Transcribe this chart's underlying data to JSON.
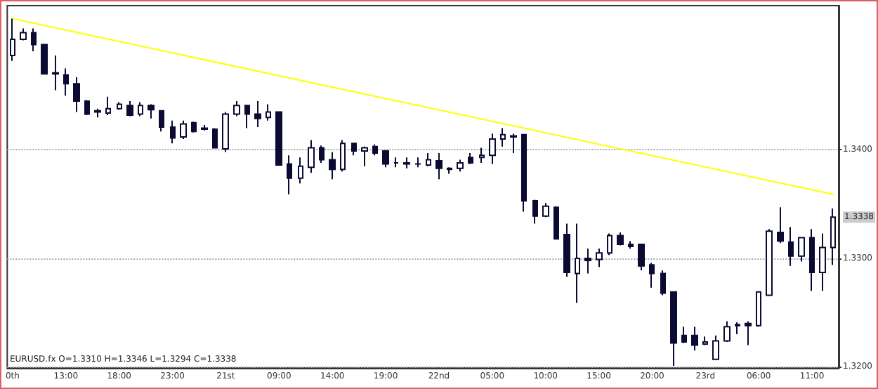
{
  "chart_data": {
    "type": "candlestick",
    "color": "#0a0a32",
    "categories": [
      "0th",
      null,
      null,
      null,
      null,
      "13:00",
      null,
      null,
      null,
      null,
      "18:00",
      null,
      null,
      null,
      null,
      "23:00",
      null,
      null,
      null,
      null,
      "21st",
      null,
      null,
      null,
      null,
      "09:00",
      null,
      null,
      null,
      null,
      "14:00",
      null,
      null,
      null,
      null,
      "19:00",
      null,
      null,
      null,
      null,
      "22nd",
      null,
      null,
      null,
      null,
      "05:00",
      null,
      null,
      null,
      null,
      "10:00",
      null,
      null,
      null,
      null,
      "15:00",
      null,
      null,
      null,
      null,
      "20:00",
      null,
      null,
      null,
      null,
      "23rd",
      null,
      null,
      null,
      null,
      "06:00",
      null,
      null,
      null,
      null,
      "11:00",
      null,
      null
    ],
    "ohlc": [
      [
        1.3487,
        1.3521,
        1.3482,
        1.3502
      ],
      [
        1.3502,
        1.3512,
        1.3501,
        1.3508
      ],
      [
        1.3508,
        1.3512,
        1.3491,
        1.3497
      ],
      [
        1.3497,
        1.3497,
        1.347,
        1.347
      ],
      [
        1.347,
        1.3487,
        1.3455,
        1.3471
      ],
      [
        1.3469,
        1.3475,
        1.345,
        1.3461
      ],
      [
        1.3461,
        1.3467,
        1.3435,
        1.3445
      ],
      [
        1.3445,
        1.3446,
        1.3432,
        1.3433
      ],
      [
        1.3435,
        1.3438,
        1.343,
        1.3436
      ],
      [
        1.3434,
        1.3449,
        1.3432,
        1.3438
      ],
      [
        1.3438,
        1.3444,
        1.3437,
        1.3442
      ],
      [
        1.3441,
        1.3445,
        1.3431,
        1.3432
      ],
      [
        1.3433,
        1.3444,
        1.3431,
        1.3441
      ],
      [
        1.3441,
        1.3442,
        1.3429,
        1.3437
      ],
      [
        1.3436,
        1.3436,
        1.3417,
        1.3421
      ],
      [
        1.3421,
        1.3427,
        1.3406,
        1.3411
      ],
      [
        1.3412,
        1.3427,
        1.341,
        1.3424
      ],
      [
        1.3425,
        1.3426,
        1.3416,
        1.3417
      ],
      [
        1.342,
        1.3423,
        1.3418,
        1.3419
      ],
      [
        1.3419,
        1.342,
        1.3402,
        1.3402
      ],
      [
        1.3401,
        1.3435,
        1.3398,
        1.3433
      ],
      [
        1.3433,
        1.3445,
        1.3431,
        1.3441
      ],
      [
        1.3441,
        1.3441,
        1.342,
        1.3433
      ],
      [
        1.3433,
        1.3445,
        1.3421,
        1.3429
      ],
      [
        1.343,
        1.3442,
        1.3427,
        1.3435
      ],
      [
        1.3435,
        1.3435,
        1.3386,
        1.3386
      ],
      [
        1.3387,
        1.3395,
        1.3359,
        1.3374
      ],
      [
        1.3374,
        1.3393,
        1.3369,
        1.3385
      ],
      [
        1.3384,
        1.3409,
        1.3379,
        1.3402
      ],
      [
        1.3402,
        1.3404,
        1.3388,
        1.3391
      ],
      [
        1.3391,
        1.3398,
        1.3373,
        1.3382
      ],
      [
        1.3382,
        1.3409,
        1.338,
        1.3406
      ],
      [
        1.3406,
        1.3406,
        1.3395,
        1.3399
      ],
      [
        1.3399,
        1.3403,
        1.3385,
        1.3402
      ],
      [
        1.3403,
        1.3405,
        1.3395,
        1.3397
      ],
      [
        1.3399,
        1.3399,
        1.3384,
        1.3387
      ],
      [
        1.3388,
        1.3393,
        1.3384,
        1.3388
      ],
      [
        1.3388,
        1.3393,
        1.3383,
        1.3387
      ],
      [
        1.3387,
        1.3393,
        1.3384,
        1.3387
      ],
      [
        1.3386,
        1.3397,
        1.3385,
        1.3391
      ],
      [
        1.339,
        1.3397,
        1.3373,
        1.3383
      ],
      [
        1.3383,
        1.3384,
        1.3378,
        1.3382
      ],
      [
        1.3383,
        1.3391,
        1.338,
        1.3388
      ],
      [
        1.3393,
        1.3397,
        1.3387,
        1.3388
      ],
      [
        1.3393,
        1.3402,
        1.3388,
        1.3395
      ],
      [
        1.3395,
        1.3415,
        1.3387,
        1.341
      ],
      [
        1.341,
        1.342,
        1.3403,
        1.3414
      ],
      [
        1.3412,
        1.3415,
        1.3397,
        1.3413
      ],
      [
        1.3414,
        1.3414,
        1.3343,
        1.3353
      ],
      [
        1.3353,
        1.3354,
        1.3332,
        1.3339
      ],
      [
        1.3339,
        1.3351,
        1.3338,
        1.3348
      ],
      [
        1.3347,
        1.3348,
        1.3318,
        1.3318
      ],
      [
        1.3322,
        1.3332,
        1.3283,
        1.3287
      ],
      [
        1.3286,
        1.3332,
        1.3259,
        1.33
      ],
      [
        1.33,
        1.3309,
        1.3286,
        1.3298
      ],
      [
        1.3299,
        1.3309,
        1.3292,
        1.3305
      ],
      [
        1.3305,
        1.3323,
        1.3303,
        1.3321
      ],
      [
        1.3321,
        1.3324,
        1.3312,
        1.3313
      ],
      [
        1.3313,
        1.3316,
        1.3309,
        1.3311
      ],
      [
        1.3313,
        1.3313,
        1.3289,
        1.3293
      ],
      [
        1.3294,
        1.3296,
        1.3273,
        1.3286
      ],
      [
        1.3286,
        1.3289,
        1.3266,
        1.3268
      ],
      [
        1.3269,
        1.3269,
        1.3201,
        1.3222
      ],
      [
        1.3229,
        1.3237,
        1.3222,
        1.3223
      ],
      [
        1.3229,
        1.3237,
        1.3215,
        1.322
      ],
      [
        1.3221,
        1.3228,
        1.322,
        1.3223
      ],
      [
        1.3207,
        1.3229,
        1.3207,
        1.3224
      ],
      [
        1.3224,
        1.3242,
        1.3223,
        1.3237
      ],
      [
        1.3238,
        1.3241,
        1.323,
        1.3239
      ],
      [
        1.324,
        1.3242,
        1.322,
        1.3238
      ],
      [
        1.3238,
        1.3269,
        1.3237,
        1.3269
      ],
      [
        1.3266,
        1.3327,
        1.3266,
        1.3325
      ],
      [
        1.3324,
        1.3347,
        1.3314,
        1.3316
      ],
      [
        1.3315,
        1.3329,
        1.3293,
        1.3302
      ],
      [
        1.3302,
        1.3319,
        1.3297,
        1.3319
      ],
      [
        1.3319,
        1.3327,
        1.327,
        1.3287
      ],
      [
        1.3287,
        1.3323,
        1.327,
        1.331
      ],
      [
        1.331,
        1.3346,
        1.3294,
        1.3338
      ]
    ],
    "series": [
      {
        "type": "line",
        "color": "#ffff00",
        "values": [
          1.3521,
          null,
          null,
          null,
          null,
          null,
          null,
          null,
          null,
          null,
          null,
          null,
          null,
          null,
          null,
          null,
          null,
          null,
          null,
          null,
          null,
          null,
          null,
          null,
          null,
          null,
          null,
          null,
          null,
          null,
          null,
          null,
          null,
          null,
          null,
          null,
          null,
          null,
          null,
          null,
          null,
          null,
          null,
          null,
          null,
          null,
          null,
          null,
          null,
          null,
          null,
          null,
          null,
          null,
          null,
          null,
          null,
          null,
          null,
          null,
          null,
          null,
          null,
          null,
          null,
          null,
          null,
          null,
          null,
          null,
          null,
          null,
          null,
          null,
          null,
          null,
          null,
          1.3359
        ]
      }
    ],
    "ylim": [
      1.3199,
      1.3533
    ],
    "yticks": [
      {
        "value": 1.32,
        "label": "1.3200"
      },
      {
        "value": 1.33,
        "label": "1.3300"
      },
      {
        "value": 1.34,
        "label": "1.3400"
      }
    ],
    "grid": "y",
    "annotations": [
      "EURUSD.fx O=1.3310 H=1.3346 L=1.3294 C=1.3338",
      {
        "text": "1.3338",
        "y": 1.3338
      }
    ]
  }
}
